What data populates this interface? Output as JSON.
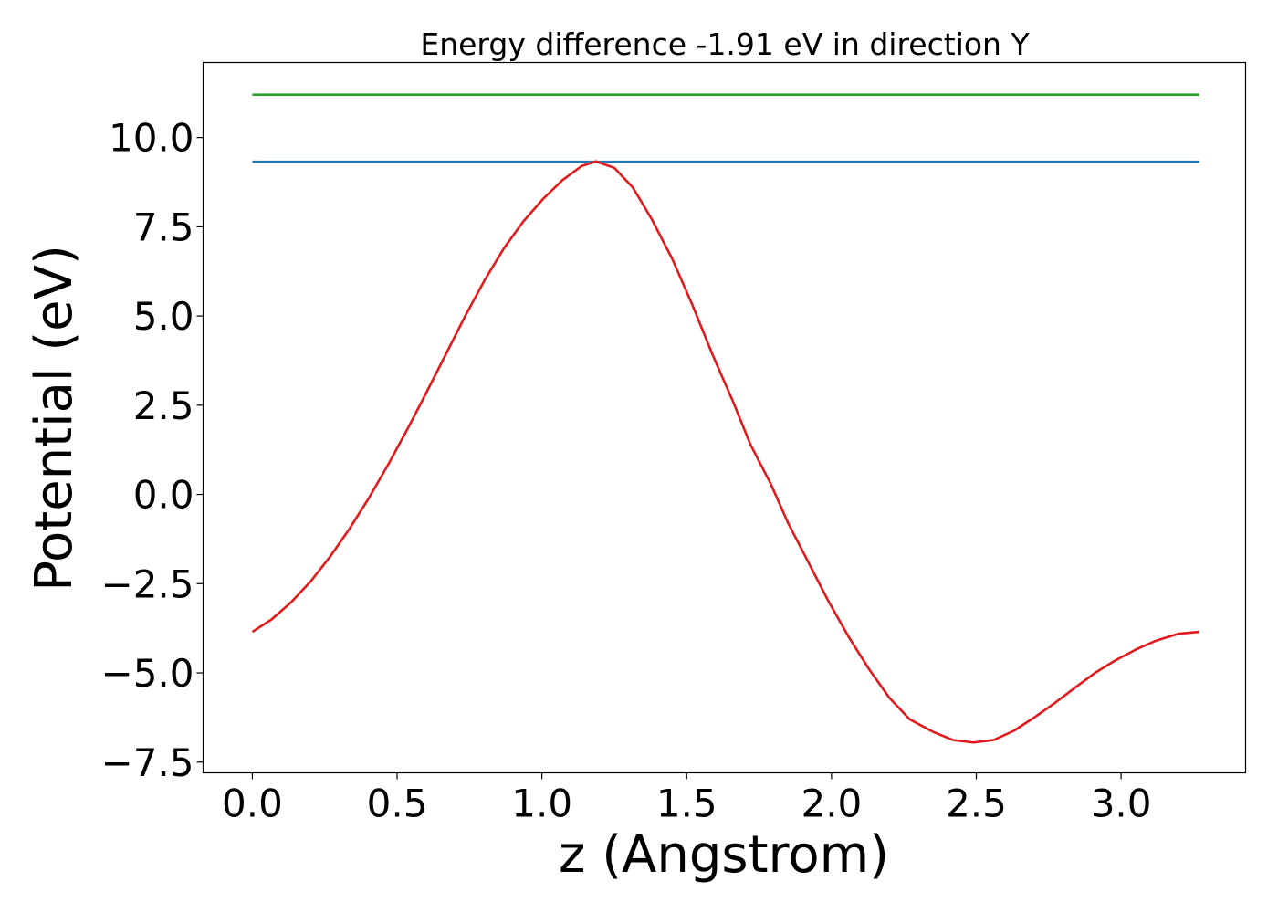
{
  "chart_data": {
    "type": "line",
    "title": "Energy difference -1.91 eV in direction Y",
    "xlabel": "z (Angstrom)",
    "ylabel": "Potential (eV)",
    "xlim": [
      -0.17,
      3.43
    ],
    "ylim": [
      -7.8,
      12.1
    ],
    "xticks": [
      {
        "value": 0.0,
        "label": "0.0"
      },
      {
        "value": 0.5,
        "label": "0.5"
      },
      {
        "value": 1.0,
        "label": "1.0"
      },
      {
        "value": 1.5,
        "label": "1.5"
      },
      {
        "value": 2.0,
        "label": "2.0"
      },
      {
        "value": 2.5,
        "label": "2.5"
      },
      {
        "value": 3.0,
        "label": "3.0"
      }
    ],
    "yticks": [
      {
        "value": 10.0,
        "label": "10.0"
      },
      {
        "value": 7.5,
        "label": "7.5"
      },
      {
        "value": 5.0,
        "label": "5.0"
      },
      {
        "value": 2.5,
        "label": "2.5"
      },
      {
        "value": 0.0,
        "label": "0.0"
      },
      {
        "value": -2.5,
        "label": "−2.5"
      },
      {
        "value": -5.0,
        "label": "−5.0"
      },
      {
        "value": -7.5,
        "label": "−7.5"
      }
    ],
    "grid": false,
    "legend": "none",
    "series": [
      {
        "color": "#2ca02c",
        "x": [
          0.0,
          3.27
        ],
        "y": [
          11.2,
          11.2
        ]
      },
      {
        "color": "#1f77b4",
        "x": [
          0.0,
          3.27
        ],
        "y": [
          9.32,
          9.32
        ]
      },
      {
        "color": "#e31a1c",
        "x": [
          0.0,
          0.067,
          0.134,
          0.201,
          0.267,
          0.334,
          0.401,
          0.468,
          0.535,
          0.602,
          0.669,
          0.735,
          0.802,
          0.869,
          0.936,
          1.003,
          1.07,
          1.137,
          1.186,
          1.25,
          1.314,
          1.38,
          1.45,
          1.52,
          1.59,
          1.66,
          1.72,
          1.79,
          1.85,
          1.92,
          1.99,
          2.06,
          2.13,
          2.2,
          2.27,
          2.35,
          2.42,
          2.49,
          2.56,
          2.63,
          2.7,
          2.77,
          2.84,
          2.91,
          2.98,
          3.05,
          3.12,
          3.2,
          3.27
        ],
        "y": [
          -3.85,
          -3.5,
          -3.02,
          -2.44,
          -1.76,
          -0.98,
          -0.12,
          0.82,
          1.82,
          2.87,
          3.94,
          5.0,
          6.0,
          6.9,
          7.65,
          8.27,
          8.8,
          9.2,
          9.33,
          9.15,
          8.6,
          7.7,
          6.6,
          5.3,
          3.9,
          2.6,
          1.4,
          0.3,
          -0.8,
          -1.9,
          -3.0,
          -4.0,
          -4.9,
          -5.7,
          -6.3,
          -6.65,
          -6.88,
          -6.95,
          -6.88,
          -6.62,
          -6.25,
          -5.85,
          -5.42,
          -5.0,
          -4.65,
          -4.35,
          -4.1,
          -3.9,
          -3.85
        ]
      }
    ]
  }
}
